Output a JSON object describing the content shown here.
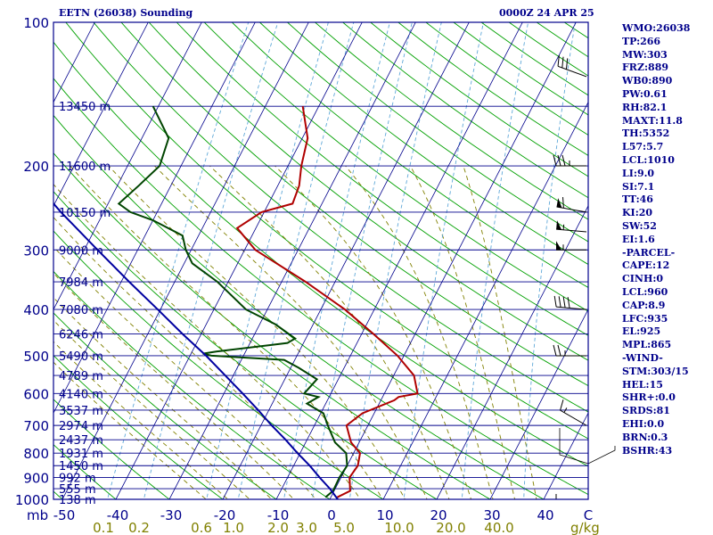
{
  "header": {
    "title": "EETN (26038) Sounding",
    "time": "0000Z 24 APR 25"
  },
  "stats": [
    "WMO:26038",
    "TP:266",
    "MW:303",
    "FRZ:889",
    "WB0:890",
    "PW:0.61",
    "RH:82.1",
    "MAXT:11.8",
    "TH:5352",
    "L57:5.7",
    "LCL:1010",
    "LI:9.0",
    "SI:7.1",
    "TT:46",
    "KI:20",
    "SW:52",
    "EI:1.6",
    "-PARCEL-",
    "CAPE:12",
    "CINH:0",
    "LCL:960",
    "CAP:8.9",
    "LFC:935",
    "EL:925",
    "MPL:865",
    "-WIND-",
    "STM:303/15",
    "HEL:15",
    "SHR+:0.0",
    "SRDS:81",
    "EHI:0.0",
    "BRN:0.3",
    "BSHR:43"
  ],
  "colors": {
    "isobar": "#00008b",
    "isotherm": "#00008b",
    "dry_adiabat": "#00a000",
    "moist_adiabat": "#808000",
    "mixing_ratio": "#5fa8d8",
    "temperature": "#b00000",
    "dewpoint": "#004400",
    "parcel": "#0000a0",
    "label": "#00008b",
    "mixing_label": "#808000"
  },
  "chart_data": {
    "type": "line",
    "title": "EETN (26038) Sounding",
    "valid_time": "0000Z 24 APR 25",
    "x_axis": {
      "unit_label": "mb",
      "ticks": [
        -50,
        -40,
        -30,
        -20,
        -10,
        0,
        10,
        20,
        30,
        40
      ],
      "tick_labels": [
        "-50",
        "-40",
        "-30",
        "-20",
        "-10",
        "0",
        "10",
        "20",
        "30",
        "40"
      ],
      "end_label": "C"
    },
    "y_axis": {
      "scale": "log",
      "range": [
        1000,
        100
      ],
      "ticks": [
        100,
        200,
        300,
        400,
        500,
        600,
        700,
        800,
        900,
        1000
      ],
      "tick_labels": [
        "100",
        "200",
        "300",
        "400",
        "500",
        "600",
        "700",
        "800",
        "900",
        "1000"
      ]
    },
    "mixing_ratio": {
      "unit": "g/kg",
      "values": [
        0.1,
        0.2,
        0.6,
        1.0,
        2.0,
        3.0,
        5.0,
        10.0,
        20.0,
        40.0
      ],
      "labels": [
        "0.1",
        "0.2",
        "0.6",
        "1.0",
        "2.0",
        "3.0",
        "5.0",
        "10.0",
        "20.0",
        "40.0"
      ]
    },
    "height_labels": [
      {
        "p": 150,
        "label": "13450 m"
      },
      {
        "p": 200,
        "label": "11600 m"
      },
      {
        "p": 250,
        "label": "10150 m"
      },
      {
        "p": 300,
        "label": "9000 m"
      },
      {
        "p": 350,
        "label": "7984 m"
      },
      {
        "p": 400,
        "label": "7080 m"
      },
      {
        "p": 450,
        "label": "6246 m"
      },
      {
        "p": 500,
        "label": "5490 m"
      },
      {
        "p": 550,
        "label": "4789 m"
      },
      {
        "p": 600,
        "label": "4140 m"
      },
      {
        "p": 650,
        "label": "3537 m"
      },
      {
        "p": 700,
        "label": "2974 m"
      },
      {
        "p": 750,
        "label": "2437 m"
      },
      {
        "p": 800,
        "label": "1931 m"
      },
      {
        "p": 850,
        "label": "1450 m"
      },
      {
        "p": 900,
        "label": "992 m"
      },
      {
        "p": 950,
        "label": "555 m"
      },
      {
        "p": 1000,
        "label": "138 m"
      }
    ],
    "series": [
      {
        "points": [
          [
            990,
            1.2
          ],
          [
            960,
            3.0
          ],
          [
            900,
            1.6
          ],
          [
            850,
            2.0
          ],
          [
            800,
            1.2
          ],
          [
            760,
            -1.5
          ],
          [
            700,
            -4.0
          ],
          [
            660,
            -2.2
          ],
          [
            620,
            2.5
          ],
          [
            610,
            3.0
          ],
          [
            600,
            6.2
          ],
          [
            550,
            3.8
          ],
          [
            500,
            -1.2
          ],
          [
            450,
            -7.8
          ],
          [
            400,
            -15.5
          ],
          [
            350,
            -25.5
          ],
          [
            300,
            -38.0
          ],
          [
            270,
            -43.5
          ],
          [
            250,
            -40.5
          ],
          [
            240,
            -35.5
          ],
          [
            220,
            -36.0
          ],
          [
            200,
            -37.5
          ],
          [
            175,
            -39.0
          ],
          [
            150,
            -43.0
          ]
        ]
      },
      {
        "points": [
          [
            990,
            -1.0
          ],
          [
            960,
            -0.2
          ],
          [
            900,
            -0.3
          ],
          [
            850,
            0.0
          ],
          [
            800,
            -1.4
          ],
          [
            760,
            -4.5
          ],
          [
            700,
            -7.5
          ],
          [
            660,
            -9.5
          ],
          [
            630,
            -13.5
          ],
          [
            610,
            -12.0
          ],
          [
            600,
            -15.0
          ],
          [
            560,
            -14.0
          ],
          [
            530,
            -18.5
          ],
          [
            510,
            -22.0
          ],
          [
            500,
            -36.0
          ],
          [
            495,
            -37.8
          ],
          [
            490,
            -35.5
          ],
          [
            475,
            -26.0
          ],
          [
            470,
            -23.0
          ],
          [
            460,
            -22.0
          ],
          [
            430,
            -27.0
          ],
          [
            400,
            -34.0
          ],
          [
            350,
            -42.0
          ],
          [
            320,
            -48.5
          ],
          [
            300,
            -51.0
          ],
          [
            280,
            -53.0
          ],
          [
            260,
            -60.0
          ],
          [
            250,
            -65.0
          ],
          [
            240,
            -68.0
          ],
          [
            220,
            -66.0
          ],
          [
            200,
            -64.0
          ],
          [
            175,
            -65.0
          ],
          [
            150,
            -71.0
          ]
        ]
      },
      {
        "points": [
          [
            1000,
            1.5
          ],
          [
            950,
            -1.0
          ],
          [
            900,
            -4.0
          ],
          [
            850,
            -7.0
          ],
          [
            800,
            -10.5
          ],
          [
            750,
            -14.0
          ],
          [
            700,
            -18.0
          ],
          [
            650,
            -22.0
          ],
          [
            600,
            -26.5
          ],
          [
            550,
            -31.5
          ],
          [
            500,
            -37.0
          ],
          [
            450,
            -43.5
          ],
          [
            400,
            -50.5
          ],
          [
            350,
            -58.5
          ],
          [
            300,
            -67.5
          ],
          [
            250,
            -78.0
          ],
          [
            200,
            -90.0
          ],
          [
            150,
            -103.0
          ],
          [
            120,
            -111.5
          ]
        ]
      }
    ],
    "wind_barbs": [
      {
        "p": 130,
        "dir": 290,
        "kt": 30
      },
      {
        "p": 200,
        "dir": 270,
        "kt": 35
      },
      {
        "p": 250,
        "dir": 280,
        "kt": 60
      },
      {
        "p": 275,
        "dir": 275,
        "kt": 55
      },
      {
        "p": 300,
        "dir": 270,
        "kt": 55
      },
      {
        "p": 400,
        "dir": 275,
        "kt": 40
      },
      {
        "p": 500,
        "dir": 270,
        "kt": 25
      },
      {
        "p": 700,
        "dir": 300,
        "kt": 15
      },
      {
        "p": 1000,
        "dir": 270,
        "kt": 5
      }
    ]
  }
}
